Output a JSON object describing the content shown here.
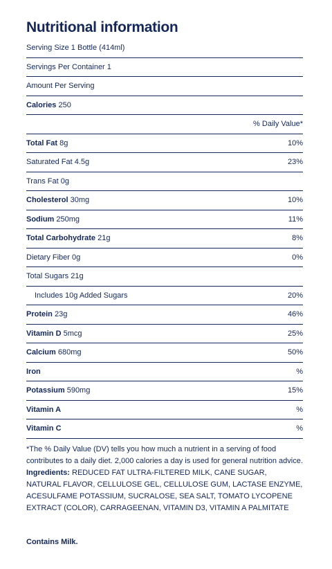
{
  "title": "Nutritional information",
  "header_rows": [
    "Serving Size 1 Bottle (414ml)",
    "Servings Per Container 1",
    "Amount Per Serving"
  ],
  "calories": {
    "label": "Calories",
    "amount": "250"
  },
  "daily_value_header": "% Daily Value*",
  "nutrients": [
    {
      "label": "Total Fat",
      "bold": true,
      "amount": "8g",
      "dv": "10%"
    },
    {
      "label": "Saturated Fat",
      "amount": "4.5g",
      "dv": "23%"
    },
    {
      "label": "Trans Fat",
      "amount": "0g"
    },
    {
      "label": "Cholesterol",
      "bold": true,
      "amount": "30mg",
      "dv": "10%"
    },
    {
      "label": "Sodium",
      "bold": true,
      "amount": "250mg",
      "dv": "11%"
    },
    {
      "label": "Total Carbohydrate",
      "bold": true,
      "amount": "21g",
      "dv": "8%"
    },
    {
      "label": "Dietary Fiber",
      "amount": "0g",
      "dv": "0%"
    },
    {
      "label": "Total Sugars",
      "amount": "21g"
    },
    {
      "label": "Includes 10g Added Sugars",
      "indent": true,
      "dv": "20%"
    },
    {
      "label": "Protein",
      "bold": true,
      "amount": "23g",
      "dv": "46%"
    },
    {
      "label": "Vitamin D",
      "bold": true,
      "amount": "5mcg",
      "dv": "25%"
    },
    {
      "label": "Calcium",
      "bold": true,
      "amount": "680mg",
      "dv": "50%"
    },
    {
      "label": "Iron",
      "bold": true,
      "dv": "%"
    },
    {
      "label": "Potassium",
      "bold": true,
      "amount": "590mg",
      "dv": "15%"
    },
    {
      "label": "Vitamin A",
      "bold": true,
      "dv": "%"
    },
    {
      "label": "Vitamin C",
      "bold": true,
      "dv": "%"
    }
  ],
  "footnote": "*The % Daily Value (DV) tells you how much a nutrient in a serving of food contributes to a daily diet. 2,000 calories a day is used for general nutrition advice.",
  "ingredients": {
    "label": "Ingredients:",
    "text": "REDUCED FAT ULTRA-FILTERED MILK, CANE SUGAR, NATURAL FLAVOR, CELLULOSE GEL, CELLULOSE GUM, LACTASE ENZYME, ACESULFAME POTASSIUM, SUCRALOSE, SEA SALT, TOMATO LYCOPENE EXTRACT (COLOR), CARRAGEENAN, VITAMIN D3, VITAMIN A PALMITATE"
  },
  "contains": "Contains Milk."
}
